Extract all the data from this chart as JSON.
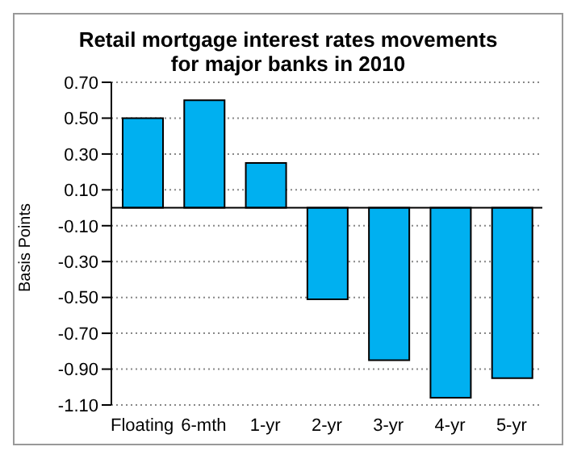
{
  "chart_data": {
    "type": "bar",
    "title": "Retail mortgage interest rates movements\nfor major banks in 2010",
    "ylabel": "Basis Points",
    "categories": [
      "Floating",
      "6-mth",
      "1-yr",
      "2-yr",
      "3-yr",
      "4-yr",
      "5-yr"
    ],
    "values": [
      0.5,
      0.6,
      0.25,
      -0.51,
      -0.85,
      -1.06,
      -0.95
    ],
    "color": "#00b0f0",
    "ylim": [
      -1.1,
      0.7
    ],
    "yticks": [
      {
        "value": 0.7,
        "label": "0.70"
      },
      {
        "value": 0.5,
        "label": "0.50"
      },
      {
        "value": 0.3,
        "label": "0.30"
      },
      {
        "value": 0.1,
        "label": "0.10"
      },
      {
        "value": -0.1,
        "label": "-0.10"
      },
      {
        "value": -0.3,
        "label": "-0.30"
      },
      {
        "value": -0.5,
        "label": "-0.50"
      },
      {
        "value": -0.7,
        "label": "-0.70"
      },
      {
        "value": -0.9,
        "label": "-0.90"
      },
      {
        "value": -1.1,
        "label": "-1.10"
      }
    ],
    "grid": "y"
  }
}
